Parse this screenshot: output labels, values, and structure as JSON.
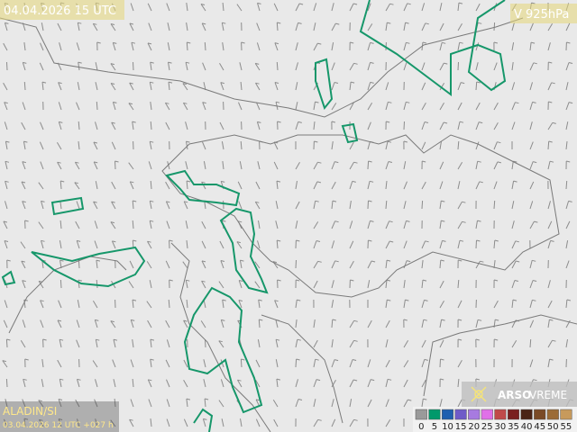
{
  "header": {
    "valid_time": "04.04.2026 15 UTC",
    "level": "V 925hPa"
  },
  "footer": {
    "model": "ALADIN/SI",
    "run": "03.04.2026 12 UTC +027 h"
  },
  "logo": {
    "brand": "ARSO",
    "product": "VREME"
  },
  "legend": {
    "items": [
      {
        "value": 0,
        "color": "#9a9a9a"
      },
      {
        "value": 5,
        "color": "#00996b"
      },
      {
        "value": 10,
        "color": "#1f5fb0"
      },
      {
        "value": 15,
        "color": "#6f5bc8"
      },
      {
        "value": 20,
        "color": "#a77ae0"
      },
      {
        "value": 25,
        "color": "#e070e8"
      },
      {
        "value": 30,
        "color": "#c04a4a"
      },
      {
        "value": 35,
        "color": "#7a1f1f"
      },
      {
        "value": 40,
        "color": "#4a2416"
      },
      {
        "value": 45,
        "color": "#7a4a26"
      },
      {
        "value": 50,
        "color": "#9c6c36"
      },
      {
        "value": 55,
        "color": "#c79a5c"
      }
    ]
  }
}
